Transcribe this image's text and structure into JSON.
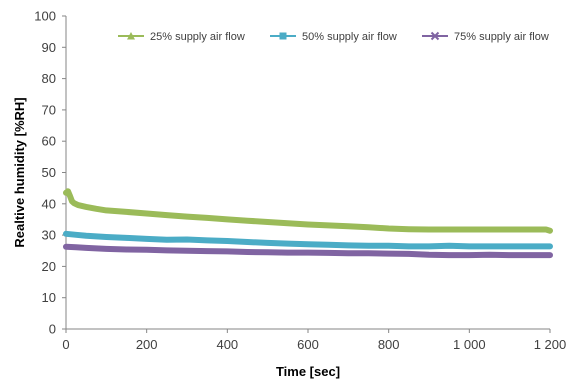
{
  "chart_data": {
    "type": "line",
    "title": "",
    "xlabel": "Time [sec]",
    "ylabel": "Realtive humidity [%RH]",
    "xlim": [
      0,
      1200
    ],
    "ylim": [
      0,
      100
    ],
    "x_ticks": [
      0,
      200,
      400,
      600,
      800,
      1000,
      1200
    ],
    "x_tick_labels": [
      "0",
      "200",
      "400",
      "600",
      "800",
      "1 000",
      "1 200"
    ],
    "y_ticks": [
      0,
      10,
      20,
      30,
      40,
      50,
      60,
      70,
      80,
      90,
      100
    ],
    "y_tick_labels": [
      "0",
      "10",
      "20",
      "30",
      "40",
      "50",
      "60",
      "70",
      "80",
      "90",
      "100"
    ],
    "grid": false,
    "legend_position": "top-right",
    "series": [
      {
        "name": "25% supply air flow",
        "color": "#9bbb59",
        "marker": "triangle",
        "x": [
          0,
          5,
          10,
          15,
          20,
          30,
          50,
          75,
          100,
          150,
          200,
          250,
          300,
          350,
          400,
          450,
          500,
          550,
          600,
          650,
          700,
          750,
          800,
          850,
          900,
          950,
          1000,
          1050,
          1100,
          1150,
          1190,
          1200
        ],
        "y": [
          43.5,
          44.0,
          42.5,
          40.8,
          40.2,
          39.6,
          39.0,
          38.4,
          37.9,
          37.4,
          36.9,
          36.4,
          35.9,
          35.5,
          35.0,
          34.6,
          34.2,
          33.8,
          33.4,
          33.1,
          32.8,
          32.5,
          32.1,
          31.9,
          31.8,
          31.8,
          31.8,
          31.8,
          31.8,
          31.8,
          31.8,
          31.4
        ]
      },
      {
        "name": "50% supply air flow",
        "color": "#4bacc6",
        "marker": "square",
        "x": [
          0,
          25,
          50,
          100,
          150,
          200,
          250,
          300,
          350,
          400,
          450,
          500,
          550,
          600,
          650,
          700,
          750,
          800,
          850,
          900,
          950,
          1000,
          1050,
          1100,
          1150,
          1200
        ],
        "y": [
          30.4,
          30.1,
          29.8,
          29.4,
          29.1,
          28.8,
          28.5,
          28.6,
          28.3,
          28.1,
          27.8,
          27.5,
          27.3,
          27.1,
          26.9,
          26.7,
          26.6,
          26.6,
          26.4,
          26.4,
          26.6,
          26.4,
          26.4,
          26.4,
          26.4,
          26.4
        ]
      },
      {
        "name": "75% supply air flow",
        "color": "#8064a2",
        "marker": "x",
        "x": [
          0,
          25,
          50,
          100,
          150,
          200,
          250,
          300,
          350,
          400,
          450,
          500,
          550,
          600,
          650,
          700,
          750,
          800,
          850,
          900,
          950,
          1000,
          1050,
          1100,
          1150,
          1200
        ],
        "y": [
          26.3,
          26.1,
          25.9,
          25.6,
          25.4,
          25.3,
          25.1,
          25.0,
          24.9,
          24.8,
          24.6,
          24.5,
          24.4,
          24.4,
          24.3,
          24.2,
          24.2,
          24.1,
          24.0,
          23.7,
          23.6,
          23.6,
          23.7,
          23.6,
          23.6,
          23.6
        ]
      }
    ]
  }
}
